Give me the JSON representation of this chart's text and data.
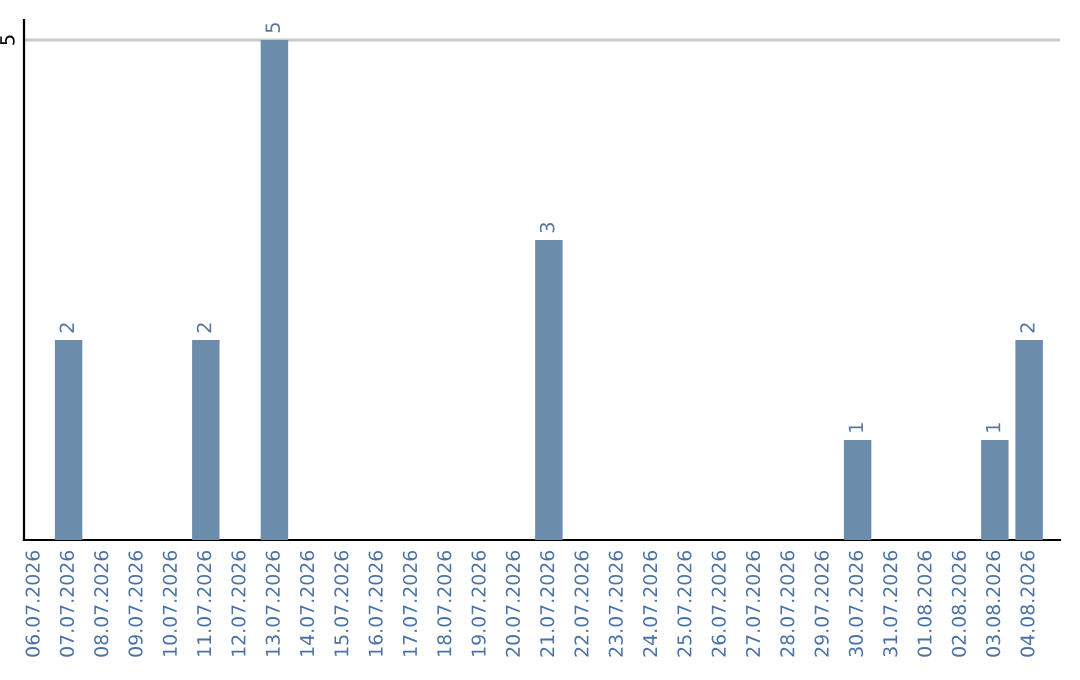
{
  "chart_data": {
    "type": "bar",
    "categories": [
      "06.07.2026",
      "07.07.2026",
      "08.07.2026",
      "09.07.2026",
      "10.07.2026",
      "11.07.2026",
      "12.07.2026",
      "13.07.2026",
      "14.07.2026",
      "15.07.2026",
      "16.07.2026",
      "17.07.2026",
      "18.07.2026",
      "19.07.2026",
      "20.07.2026",
      "21.07.2026",
      "22.07.2026",
      "23.07.2026",
      "24.07.2026",
      "25.07.2026",
      "26.07.2026",
      "27.07.2026",
      "28.07.2026",
      "29.07.2026",
      "30.07.2026",
      "31.07.2026",
      "01.08.2026",
      "02.08.2026",
      "03.08.2026",
      "04.08.2026"
    ],
    "values": [
      0,
      2,
      0,
      0,
      0,
      2,
      0,
      5,
      0,
      0,
      0,
      0,
      0,
      0,
      0,
      3,
      0,
      0,
      0,
      0,
      0,
      0,
      0,
      0,
      1,
      0,
      0,
      0,
      1,
      2
    ],
    "color": "#6b8caa",
    "value_labels": [
      null,
      "2",
      null,
      null,
      null,
      "2",
      null,
      "5",
      null,
      null,
      null,
      null,
      null,
      null,
      null,
      "3",
      null,
      null,
      null,
      null,
      null,
      null,
      null,
      null,
      "1",
      null,
      null,
      null,
      "1",
      "2"
    ],
    "ylim": [
      0,
      5.2
    ],
    "yticks": [
      5
    ],
    "grid": "y"
  }
}
